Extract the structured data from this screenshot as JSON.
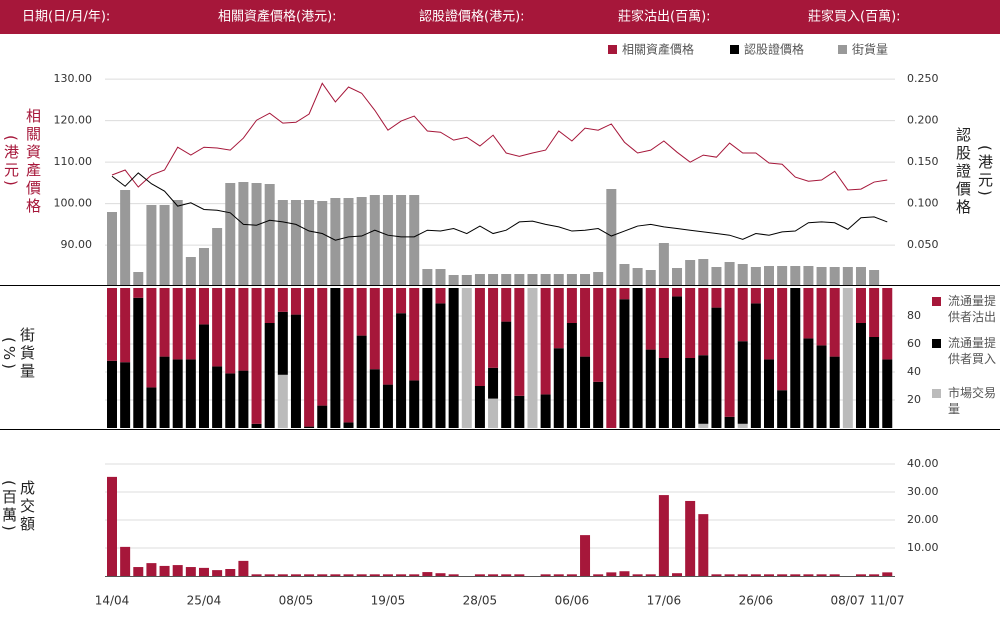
{
  "header": {
    "labels": [
      "日期(日/月/年):",
      "相關資產價格(港元):",
      "認股證價格(港元):",
      "莊家沽出(百萬):",
      "莊家買入(百萬):"
    ]
  },
  "chart_data": [
    {
      "type": "combo",
      "ylabel": "相關資產價格(港元)",
      "y2label": "認股證價格(港元)",
      "ylim": [
        80.4,
        132.2
      ],
      "yticks": [
        {
          "value": 130,
          "label": "130.00"
        },
        {
          "value": 120,
          "label": "120.00"
        },
        {
          "value": 110,
          "label": "110.00"
        },
        {
          "value": 100,
          "label": "100.00"
        },
        {
          "value": 90,
          "label": "90.00"
        }
      ],
      "y2lim": [
        0.002,
        0.261
      ],
      "y2ticks": [
        {
          "value": 0.25,
          "label": "0.250"
        },
        {
          "value": 0.2,
          "label": "0.200"
        },
        {
          "value": 0.15,
          "label": "0.150"
        },
        {
          "value": 0.1,
          "label": "0.100"
        },
        {
          "value": 0.05,
          "label": "0.050"
        }
      ],
      "y3lim": [
        0,
        215
      ],
      "grid": true,
      "series": [
        {
          "name": "相關資產價格",
          "color": "#a6173a",
          "axis": "y",
          "values": [
            106.9,
            108.1,
            104.0,
            106.9,
            108.1,
            113.6,
            111.7,
            113.6,
            113.4,
            112.9,
            115.8,
            120.1,
            121.8,
            119.4,
            119.6,
            121.6,
            129.0,
            124.5,
            128.1,
            126.6,
            122.5,
            117.7,
            119.9,
            121.1,
            117.5,
            117.2,
            115.3,
            116.0,
            113.9,
            116.5,
            112.2,
            111.4,
            112.2,
            112.9,
            117.5,
            115.1,
            118.2,
            117.7,
            119.2,
            114.8,
            112.2,
            112.9,
            115.1,
            112.4,
            110.0,
            111.7,
            111.2,
            114.6,
            112.2,
            112.2,
            109.8,
            109.5,
            106.4,
            105.4,
            105.7,
            107.8,
            103.3,
            103.5,
            105.2,
            105.7
          ]
        },
        {
          "name": "認股證價格",
          "color": "#000000",
          "axis": "y2",
          "values": [
            0.133,
            0.121,
            0.137,
            0.124,
            0.115,
            0.097,
            0.101,
            0.093,
            0.092,
            0.089,
            0.075,
            0.074,
            0.08,
            0.078,
            0.075,
            0.067,
            0.064,
            0.056,
            0.06,
            0.061,
            0.068,
            0.062,
            0.06,
            0.06,
            0.068,
            0.067,
            0.07,
            0.064,
            0.073,
            0.064,
            0.068,
            0.078,
            0.079,
            0.075,
            0.072,
            0.067,
            0.068,
            0.07,
            0.061,
            0.067,
            0.073,
            0.075,
            0.072,
            0.07,
            0.068,
            0.066,
            0.064,
            0.062,
            0.057,
            0.064,
            0.062,
            0.066,
            0.067,
            0.077,
            0.078,
            0.077,
            0.069,
            0.083,
            0.084,
            0.078
          ]
        },
        {
          "name": "街貨量",
          "color": "#999999",
          "axis": "y3",
          "type": "bar",
          "values": [
            73,
            95,
            13,
            80,
            80,
            85,
            28,
            37,
            57,
            102,
            103,
            102,
            101,
            85,
            85,
            85,
            84,
            87,
            87,
            88,
            90,
            90,
            90,
            90,
            16,
            16,
            10,
            10,
            11,
            11,
            11,
            11,
            11,
            11,
            11,
            11,
            11,
            13,
            96,
            21,
            17,
            15,
            42,
            17,
            25,
            26,
            18,
            23,
            21,
            18,
            19,
            19,
            19,
            19,
            18,
            18,
            18,
            18,
            15,
            null
          ]
        }
      ]
    },
    {
      "type": "stacked_bar",
      "ylabel": "街貨量(%)",
      "ylim": [
        0,
        100
      ],
      "yticks": [
        80,
        60,
        40,
        20
      ],
      "grid": true,
      "series": [
        {
          "name": "流通量提供者沽出",
          "color": "#a6173a",
          "values": [
            52,
            53,
            7,
            71,
            49,
            51,
            51,
            26,
            56,
            61,
            59,
            97,
            25,
            17,
            19,
            99,
            84,
            0,
            96,
            34,
            58,
            69,
            18,
            66,
            0,
            11,
            0,
            0,
            70,
            57,
            24,
            77,
            0,
            76,
            43,
            25,
            49,
            67,
            100,
            8,
            0,
            44,
            50,
            6,
            50,
            48,
            14,
            92,
            38,
            11,
            51,
            73,
            0,
            36,
            41,
            49,
            0,
            25,
            35,
            51
          ]
        },
        {
          "name": "流通量提供者買入",
          "color": "#000000",
          "values": [
            48,
            47,
            93,
            29,
            51,
            49,
            49,
            74,
            44,
            39,
            41,
            3,
            75,
            45,
            81,
            1,
            16,
            100,
            4,
            66,
            42,
            31,
            82,
            34,
            100,
            89,
            100,
            0,
            30,
            22,
            76,
            23,
            0,
            24,
            57,
            75,
            51,
            33,
            0,
            92,
            100,
            56,
            50,
            94,
            50,
            49,
            86,
            8,
            59,
            89,
            49,
            27,
            100,
            64,
            59,
            51,
            0,
            75,
            65,
            49
          ]
        },
        {
          "name": "市場交易量",
          "color": "#bbbbbb",
          "values": [
            0,
            0,
            0,
            0,
            0,
            0,
            0,
            0,
            0,
            0,
            0,
            0,
            0,
            38,
            0,
            0,
            0,
            0,
            0,
            0,
            0,
            0,
            0,
            0,
            0,
            0,
            0,
            100,
            0,
            21,
            0,
            0,
            100,
            0,
            0,
            0,
            0,
            0,
            0,
            0,
            0,
            0,
            0,
            0,
            0,
            3,
            0,
            0,
            3,
            0,
            0,
            0,
            0,
            0,
            0,
            0,
            100,
            0,
            0,
            0
          ]
        }
      ]
    },
    {
      "type": "bar",
      "ylabel": "成交額(百萬)",
      "color": "#a6173a",
      "ylim": [
        0,
        52.5
      ],
      "yticks": [
        {
          "value": 40,
          "label": "40.00"
        },
        {
          "value": 30,
          "label": "30.00"
        },
        {
          "value": 20,
          "label": "20.00"
        },
        {
          "value": 10,
          "label": "10.00"
        }
      ],
      "grid": true,
      "categories": [
        "14/04",
        null,
        null,
        null,
        null,
        null,
        null,
        "25/04",
        null,
        null,
        null,
        null,
        null,
        null,
        "08/05",
        null,
        null,
        null,
        null,
        null,
        null,
        "19/05",
        null,
        null,
        null,
        null,
        null,
        null,
        "28/05",
        null,
        null,
        null,
        null,
        null,
        null,
        "06/06",
        null,
        null,
        null,
        null,
        null,
        null,
        "17/06",
        null,
        null,
        null,
        null,
        null,
        null,
        "26/06",
        null,
        null,
        null,
        null,
        null,
        null,
        "08/07",
        null,
        null,
        "11/07"
      ],
      "values": [
        35.4,
        10.4,
        3.2,
        4.6,
        3.6,
        3.9,
        3.2,
        2.9,
        2.1,
        2.5,
        5.4,
        0.6,
        0.6,
        0.6,
        0.6,
        0.6,
        0.6,
        0.6,
        0.6,
        0.6,
        0.6,
        0.6,
        0.6,
        0.6,
        1.4,
        1.0,
        0.6,
        0,
        0.6,
        0.6,
        0.6,
        0.6,
        0,
        0.6,
        0.6,
        0.6,
        14.6,
        0.6,
        1.3,
        1.7,
        0.6,
        0.6,
        28.9,
        1.0,
        26.8,
        22.1,
        0.6,
        0.6,
        0.6,
        0.6,
        0.6,
        0.6,
        0.6,
        0.6,
        0.6,
        0.6,
        0,
        0.6,
        0.6,
        1.3
      ]
    }
  ]
}
